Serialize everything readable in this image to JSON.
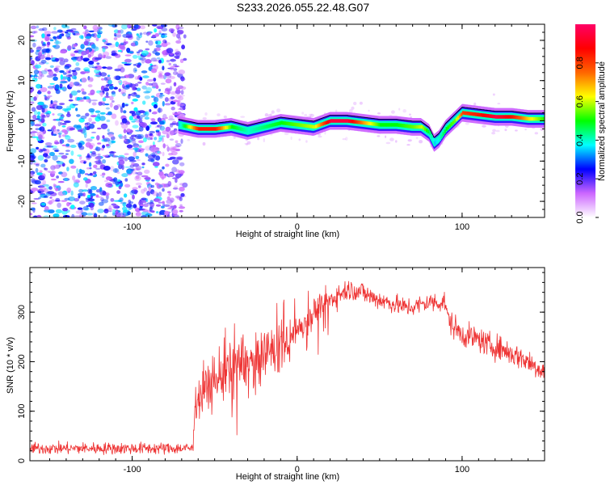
{
  "title": "S233.2026.055.22.48.G07",
  "chart_data": [
    {
      "type": "heatmap",
      "xlabel": "Height of straight line (km)",
      "ylabel": "Frequency (Hz)",
      "xlim": [
        -162,
        150
      ],
      "ylim": [
        -24,
        24
      ],
      "xticks": [
        -100,
        0,
        100
      ],
      "yticks": [
        -20,
        -10,
        0,
        10,
        20
      ],
      "noise_region_x": [
        -162,
        -72
      ],
      "ridge": {
        "x": [
          -72,
          -60,
          -50,
          -40,
          -30,
          -20,
          -10,
          0,
          10,
          20,
          30,
          40,
          50,
          60,
          70,
          75,
          80,
          83,
          86,
          90,
          95,
          100,
          110,
          120,
          130,
          140,
          150
        ],
        "freq": [
          -1,
          -2,
          -2,
          -1.5,
          -2.5,
          -1.5,
          -0.5,
          -1,
          -1.5,
          0,
          0,
          -0.5,
          -1,
          -1,
          -1.5,
          -1.5,
          -3,
          -5.5,
          -4.5,
          -2,
          0,
          2,
          1.5,
          1,
          1,
          0.5,
          0.5
        ],
        "amp": [
          0.35,
          0.85,
          0.85,
          0.5,
          0.4,
          0.45,
          0.5,
          0.55,
          0.6,
          0.95,
          0.95,
          0.7,
          0.5,
          0.5,
          0.55,
          0.6,
          0.45,
          0.35,
          0.4,
          0.5,
          0.55,
          0.8,
          0.85,
          0.95,
          0.85,
          0.65,
          0.5
        ]
      },
      "colorbar": {
        "label": "Normalized spectral amplitude",
        "ticks": [
          "0.0",
          "0.2",
          "0.4",
          "0.6",
          "0.8"
        ],
        "tick_values": [
          0,
          0.2,
          0.4,
          0.6,
          0.8
        ],
        "range": [
          0,
          1
        ],
        "colors": [
          "#ffffff",
          "#cc66ff",
          "#0000ff",
          "#00ffff",
          "#00ff00",
          "#ffff00",
          "#ff6600",
          "#ff0000",
          "#ff0066"
        ]
      }
    },
    {
      "type": "line",
      "xlabel": "Height of straight line (km)",
      "ylabel": "SNR (10 * v/v)",
      "xlim": [
        -162,
        150
      ],
      "ylim": [
        0,
        390
      ],
      "xticks": [
        -100,
        0,
        100
      ],
      "yticks": [
        0,
        100,
        200,
        300
      ],
      "series": [
        {
          "color": "#ee3333",
          "x": [
            -162,
            -150,
            -140,
            -130,
            -120,
            -110,
            -100,
            -90,
            -80,
            -70,
            -63,
            -62,
            -60,
            -55,
            -50,
            -45,
            -40,
            -35,
            -30,
            -25,
            -20,
            -15,
            -10,
            -5,
            0,
            5,
            10,
            15,
            20,
            25,
            30,
            35,
            40,
            45,
            50,
            55,
            60,
            65,
            70,
            75,
            80,
            85,
            90,
            91,
            95,
            100,
            105,
            110,
            115,
            120,
            125,
            130,
            135,
            140,
            145,
            150
          ],
          "y": [
            25,
            25,
            25,
            25,
            25,
            25,
            25,
            25,
            25,
            25,
            25,
            120,
            130,
            150,
            160,
            175,
            185,
            190,
            200,
            195,
            210,
            225,
            235,
            240,
            265,
            280,
            300,
            310,
            325,
            335,
            345,
            345,
            340,
            330,
            325,
            320,
            315,
            310,
            310,
            315,
            320,
            320,
            320,
            290,
            270,
            255,
            250,
            245,
            235,
            230,
            225,
            215,
            210,
            200,
            190,
            180
          ],
          "noise": [
            12,
            12,
            12,
            12,
            12,
            12,
            12,
            12,
            12,
            12,
            12,
            35,
            45,
            55,
            60,
            65,
            60,
            60,
            55,
            55,
            50,
            50,
            45,
            40,
            30,
            30,
            28,
            25,
            25,
            25,
            22,
            22,
            22,
            22,
            20,
            20,
            20,
            20,
            20,
            20,
            20,
            22,
            22,
            25,
            25,
            25,
            25,
            25,
            25,
            25,
            25,
            25,
            25,
            25,
            25,
            22
          ]
        }
      ]
    }
  ]
}
